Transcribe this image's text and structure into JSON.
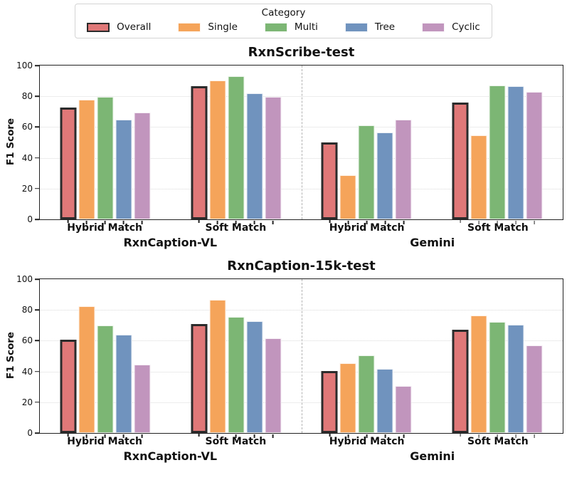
{
  "legend": {
    "title": "Category",
    "entries": [
      {
        "label": "Overall",
        "color": "#e07878"
      },
      {
        "label": "Single",
        "color": "#f5a45a"
      },
      {
        "label": "Multi",
        "color": "#7cb674"
      },
      {
        "label": "Tree",
        "color": "#7093be"
      },
      {
        "label": "Cyclic",
        "color": "#c195bd"
      }
    ]
  },
  "style": {
    "bar_colors": [
      "#e07878",
      "#f5a45a",
      "#7cb674",
      "#7093be",
      "#c195bd"
    ],
    "overall_edge": "#2b2b2b",
    "spine_color": "#222222",
    "grid_color": "#dadada",
    "divider_color": "#b3b3b3"
  },
  "chart_data": [
    {
      "type": "bar",
      "title": "RxnScribe-test",
      "ylabel": "F1 Score",
      "ylim": [
        0,
        100
      ],
      "yticks": [
        0,
        20,
        40,
        60,
        80,
        100
      ],
      "grid": "horizontal-dotted",
      "legend_position": "above-figure",
      "series_names": [
        "Overall",
        "Single",
        "Multi",
        "Tree",
        "Cyclic"
      ],
      "sections": [
        {
          "label": "RxnCaption-VL",
          "clusters": [
            {
              "label": "Hybrid Match",
              "values": [
                72.5,
                78,
                79.5,
                65,
                69.5
              ]
            },
            {
              "label": "Soft Match",
              "values": [
                86.5,
                90.5,
                93,
                82,
                79.5
              ]
            }
          ]
        },
        {
          "label": "Gemini",
          "clusters": [
            {
              "label": "Hybrid Match",
              "values": [
                50,
                28.5,
                61,
                56.5,
                65
              ]
            },
            {
              "label": "Soft Match",
              "values": [
                76,
                54.5,
                87,
                86.5,
                83
              ]
            }
          ]
        }
      ]
    },
    {
      "type": "bar",
      "title": "RxnCaption-15k-test",
      "ylabel": "F1 Score",
      "ylim": [
        0,
        100
      ],
      "yticks": [
        0,
        20,
        40,
        60,
        80,
        100
      ],
      "grid": "horizontal-dotted",
      "legend_position": "above-figure",
      "series_names": [
        "Overall",
        "Single",
        "Multi",
        "Tree",
        "Cyclic"
      ],
      "sections": [
        {
          "label": "RxnCaption-VL",
          "clusters": [
            {
              "label": "Hybrid Match",
              "values": [
                60.5,
                82.5,
                70,
                64,
                44.5
              ]
            },
            {
              "label": "Soft Match",
              "values": [
                71,
                86.5,
                75.5,
                72.5,
                61.5
              ]
            }
          ]
        },
        {
          "label": "Gemini",
          "clusters": [
            {
              "label": "Hybrid Match",
              "values": [
                40.5,
                45.5,
                50.5,
                41.5,
                30.5
              ]
            },
            {
              "label": "Soft Match",
              "values": [
                67,
                76.5,
                72,
                70.5,
                57
              ]
            }
          ]
        }
      ]
    }
  ]
}
